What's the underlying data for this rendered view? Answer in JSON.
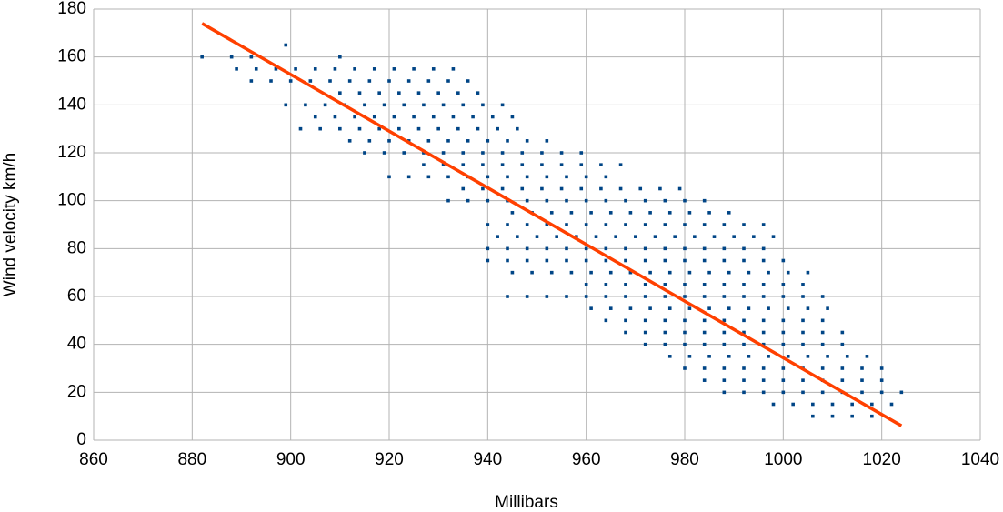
{
  "chart_data": {
    "type": "scatter",
    "x_label": "Millibars",
    "y_label": "Wind velocity km/h",
    "xlim": [
      860,
      1040
    ],
    "xticks": [
      860,
      880,
      900,
      920,
      940,
      960,
      980,
      1000,
      1020,
      1040
    ],
    "ylim": [
      0,
      180
    ],
    "yticks": [
      0,
      20,
      40,
      60,
      80,
      100,
      120,
      140,
      160,
      180
    ],
    "grid": true,
    "color": "#004586",
    "x": [
      1006,
      1010,
      1014,
      1018,
      998,
      1002,
      1006,
      1010,
      1014,
      1018,
      1022,
      988,
      992,
      996,
      1000,
      1004,
      1008,
      1012,
      1016,
      1020,
      1024,
      984,
      988,
      992,
      996,
      1000,
      1004,
      1008,
      1012,
      1016,
      1020,
      980,
      984,
      988,
      992,
      996,
      1000,
      1004,
      1008,
      1012,
      1016,
      1020,
      977,
      981,
      985,
      989,
      993,
      997,
      1001,
      1005,
      1009,
      1013,
      1017,
      972,
      976,
      980,
      984,
      988,
      992,
      996,
      1000,
      1004,
      1008,
      1012,
      968,
      972,
      976,
      980,
      984,
      988,
      992,
      996,
      1000,
      1004,
      1008,
      1012,
      964,
      968,
      972,
      976,
      980,
      984,
      988,
      992,
      996,
      1000,
      1004,
      1008,
      961,
      965,
      969,
      973,
      977,
      981,
      985,
      989,
      993,
      997,
      1001,
      1005,
      1009,
      944,
      948,
      952,
      956,
      960,
      964,
      968,
      972,
      976,
      980,
      984,
      988,
      992,
      996,
      1000,
      1004,
      1008,
      960,
      964,
      968,
      972,
      976,
      980,
      984,
      988,
      992,
      996,
      1000,
      1004,
      945,
      949,
      953,
      957,
      961,
      965,
      969,
      973,
      977,
      981,
      985,
      989,
      993,
      997,
      1001,
      1005,
      940,
      944,
      948,
      952,
      956,
      960,
      964,
      968,
      972,
      976,
      980,
      984,
      988,
      992,
      996,
      1000,
      940,
      944,
      948,
      952,
      956,
      960,
      964,
      968,
      972,
      976,
      980,
      984,
      988,
      992,
      996,
      942,
      946,
      950,
      954,
      958,
      962,
      966,
      970,
      974,
      978,
      982,
      986,
      990,
      994,
      998,
      940,
      944,
      948,
      952,
      956,
      960,
      964,
      968,
      972,
      976,
      980,
      984,
      988,
      992,
      996,
      945,
      949,
      953,
      957,
      961,
      965,
      969,
      973,
      977,
      981,
      985,
      989,
      932,
      936,
      940,
      944,
      948,
      952,
      956,
      960,
      964,
      968,
      972,
      976,
      980,
      984,
      935,
      939,
      943,
      947,
      951,
      955,
      959,
      963,
      967,
      971,
      975,
      979,
      920,
      924,
      928,
      932,
      936,
      940,
      944,
      948,
      952,
      956,
      960,
      964,
      927,
      931,
      935,
      939,
      943,
      947,
      951,
      955,
      959,
      963,
      967,
      915,
      919,
      923,
      927,
      931,
      935,
      939,
      943,
      947,
      951,
      955,
      959,
      912,
      916,
      920,
      924,
      928,
      932,
      936,
      940,
      944,
      948,
      952,
      902,
      906,
      910,
      914,
      918,
      922,
      926,
      930,
      934,
      938,
      942,
      946,
      905,
      909,
      913,
      917,
      921,
      925,
      929,
      933,
      937,
      941,
      945,
      899,
      903,
      907,
      911,
      915,
      919,
      923,
      927,
      931,
      935,
      939,
      943,
      910,
      914,
      918,
      922,
      926,
      930,
      934,
      938,
      892,
      896,
      900,
      904,
      908,
      912,
      916,
      920,
      924,
      928,
      932,
      936,
      889,
      893,
      897,
      901,
      905,
      909,
      913,
      917,
      921,
      925,
      929,
      933,
      882,
      888,
      892,
      910,
      899
    ],
    "values": [
      10,
      10,
      10,
      10,
      15,
      15,
      15,
      15,
      15,
      15,
      15,
      20,
      20,
      20,
      20,
      20,
      20,
      20,
      20,
      20,
      20,
      25,
      25,
      25,
      25,
      25,
      25,
      25,
      25,
      25,
      25,
      30,
      30,
      30,
      30,
      30,
      30,
      30,
      30,
      30,
      30,
      30,
      35,
      35,
      35,
      35,
      35,
      35,
      35,
      35,
      35,
      35,
      35,
      40,
      40,
      40,
      40,
      40,
      40,
      40,
      40,
      40,
      40,
      40,
      45,
      45,
      45,
      45,
      45,
      45,
      45,
      45,
      45,
      45,
      45,
      45,
      50,
      50,
      50,
      50,
      50,
      50,
      50,
      50,
      50,
      50,
      50,
      50,
      55,
      55,
      55,
      55,
      55,
      55,
      55,
      55,
      55,
      55,
      55,
      55,
      55,
      60,
      60,
      60,
      60,
      60,
      60,
      60,
      60,
      60,
      60,
      60,
      60,
      60,
      60,
      60,
      60,
      60,
      65,
      65,
      65,
      65,
      65,
      65,
      65,
      65,
      65,
      65,
      65,
      65,
      70,
      70,
      70,
      70,
      70,
      70,
      70,
      70,
      70,
      70,
      70,
      70,
      70,
      70,
      70,
      70,
      75,
      75,
      75,
      75,
      75,
      75,
      75,
      75,
      75,
      75,
      75,
      75,
      75,
      75,
      75,
      75,
      80,
      80,
      80,
      80,
      80,
      80,
      80,
      80,
      80,
      80,
      80,
      80,
      80,
      80,
      80,
      85,
      85,
      85,
      85,
      85,
      85,
      85,
      85,
      85,
      85,
      85,
      85,
      85,
      85,
      85,
      90,
      90,
      90,
      90,
      90,
      90,
      90,
      90,
      90,
      90,
      90,
      90,
      90,
      90,
      90,
      95,
      95,
      95,
      95,
      95,
      95,
      95,
      95,
      95,
      95,
      95,
      95,
      100,
      100,
      100,
      100,
      100,
      100,
      100,
      100,
      100,
      100,
      100,
      100,
      100,
      100,
      105,
      105,
      105,
      105,
      105,
      105,
      105,
      105,
      105,
      105,
      105,
      105,
      110,
      110,
      110,
      110,
      110,
      110,
      110,
      110,
      110,
      110,
      110,
      110,
      115,
      115,
      115,
      115,
      115,
      115,
      115,
      115,
      115,
      115,
      115,
      120,
      120,
      120,
      120,
      120,
      120,
      120,
      120,
      120,
      120,
      120,
      120,
      125,
      125,
      125,
      125,
      125,
      125,
      125,
      125,
      125,
      125,
      125,
      130,
      130,
      130,
      130,
      130,
      130,
      130,
      130,
      130,
      130,
      130,
      130,
      135,
      135,
      135,
      135,
      135,
      135,
      135,
      135,
      135,
      135,
      135,
      140,
      140,
      140,
      140,
      140,
      140,
      140,
      140,
      140,
      140,
      140,
      140,
      145,
      145,
      145,
      145,
      145,
      145,
      145,
      145,
      150,
      150,
      150,
      150,
      150,
      150,
      150,
      150,
      150,
      150,
      150,
      150,
      155,
      155,
      155,
      155,
      155,
      155,
      155,
      155,
      155,
      155,
      155,
      155,
      160,
      160,
      160,
      160,
      165
    ],
    "trendline": {
      "x": [
        882,
        1024
      ],
      "values": [
        174,
        6
      ],
      "color": "#ff4000"
    }
  }
}
